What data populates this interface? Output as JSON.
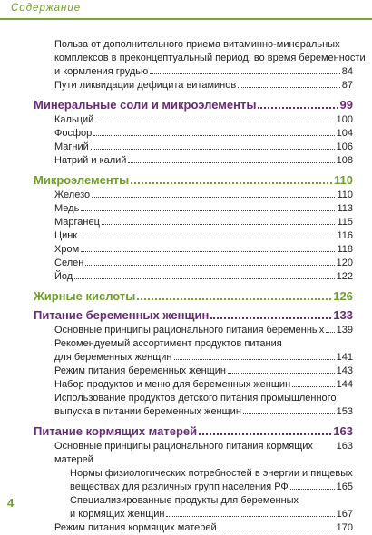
{
  "header": {
    "title": "Содержание"
  },
  "footer": {
    "page_number": "4"
  },
  "entries": [
    {
      "level": 2,
      "lines": [
        "Польза от дополнительного приема витаминно-минеральных",
        "комплексов в преконцептуальный период, во время беременности",
        "и кормления грудью"
      ],
      "page": 84
    },
    {
      "level": 2,
      "lines": [
        "Пути ликвидации дефицита витаминов"
      ],
      "page": 87
    },
    {
      "level": 1,
      "color": "#6b2a78",
      "lines": [
        "Минеральные соли и микроэлементы"
      ],
      "page": 99
    },
    {
      "level": 2,
      "lines": [
        "Кальций"
      ],
      "page": 100
    },
    {
      "level": 2,
      "lines": [
        "Фосфор"
      ],
      "page": 104
    },
    {
      "level": 2,
      "lines": [
        "Магний"
      ],
      "page": 106
    },
    {
      "level": 2,
      "lines": [
        "Натрий и калий"
      ],
      "page": 108
    },
    {
      "level": 1,
      "color": "#6f9e2c",
      "lines": [
        "Микроэлементы"
      ],
      "page": 110
    },
    {
      "level": 2,
      "lines": [
        "Железо"
      ],
      "page": 110
    },
    {
      "level": 2,
      "lines": [
        "Медь"
      ],
      "page": 113
    },
    {
      "level": 2,
      "lines": [
        "Марганец"
      ],
      "page": 115
    },
    {
      "level": 2,
      "lines": [
        "Цинк"
      ],
      "page": 116
    },
    {
      "level": 2,
      "lines": [
        "Хром"
      ],
      "page": 118
    },
    {
      "level": 2,
      "lines": [
        "Селен"
      ],
      "page": 120
    },
    {
      "level": 2,
      "lines": [
        "Йод"
      ],
      "page": 122
    },
    {
      "level": 1,
      "color": "#6f9e2c",
      "lines": [
        "Жирные кислоты"
      ],
      "page": 126
    },
    {
      "level": 1,
      "color": "#6b2a78",
      "lines": [
        "Питание беременных женщин"
      ],
      "page": 133
    },
    {
      "level": 2,
      "lines": [
        "Основные принципы рационального питания беременных"
      ],
      "page": 139
    },
    {
      "level": 2,
      "lines": [
        "Рекомендуемый ассортимент продуктов питания",
        "для беременных женщин"
      ],
      "page": 141
    },
    {
      "level": 2,
      "lines": [
        "Режим питания беременных женщин"
      ],
      "page": 143
    },
    {
      "level": 2,
      "lines": [
        "Набор продуктов и меню для беременных женщин"
      ],
      "page": 144
    },
    {
      "level": 2,
      "lines": [
        "Использование продуктов детского питания промышленного",
        "выпуска в питании беременных женщин"
      ],
      "page": 153
    },
    {
      "level": 1,
      "color": "#6b2a78",
      "lines": [
        "Питание кормящих матерей"
      ],
      "page": 163
    },
    {
      "level": 2,
      "lines": [
        "Основные принципы рационального питания кормящих матерей"
      ],
      "page": 163
    },
    {
      "level": 3,
      "lines": [
        "Нормы физиологических потребностей в энергии и пищевых",
        "веществах для различных групп населения РФ"
      ],
      "page": 165
    },
    {
      "level": 3,
      "lines": [
        "Специализированные продукты для беременных",
        "и кормящих женщин"
      ],
      "page": 167
    },
    {
      "level": 2,
      "lines": [
        "Режим питания кормящих матерей"
      ],
      "page": 170
    }
  ]
}
